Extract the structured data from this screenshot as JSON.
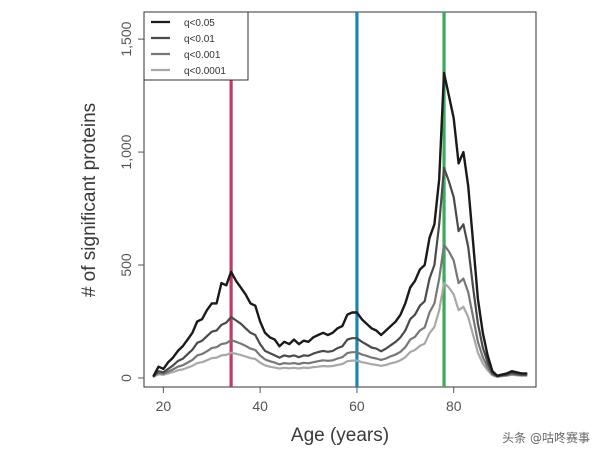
{
  "chart_data": {
    "type": "line",
    "title": "",
    "xlabel": "Age (years)",
    "ylabel": "# of significant proteins",
    "xlim": [
      16,
      97
    ],
    "ylim": [
      -40,
      1620
    ],
    "xticks": [
      20,
      40,
      60,
      80
    ],
    "yticks": [
      0,
      500,
      1000,
      1500
    ],
    "yticklabels": [
      "0",
      "500",
      "1,000",
      "1,500"
    ],
    "grid": false,
    "legend_position": "top-left",
    "x": [
      18,
      19,
      20,
      21,
      22,
      23,
      24,
      25,
      26,
      27,
      28,
      29,
      30,
      31,
      32,
      33,
      34,
      35,
      36,
      37,
      38,
      39,
      40,
      41,
      42,
      43,
      44,
      45,
      46,
      47,
      48,
      49,
      50,
      51,
      52,
      53,
      54,
      55,
      56,
      57,
      58,
      59,
      60,
      61,
      62,
      63,
      64,
      65,
      66,
      67,
      68,
      69,
      70,
      71,
      72,
      73,
      74,
      75,
      76,
      77,
      78,
      79,
      80,
      81,
      82,
      83,
      84,
      85,
      86,
      87,
      88,
      89,
      90,
      91,
      92,
      93,
      94,
      95
    ],
    "series": [
      {
        "name": "q<0.05",
        "color": "#1a1a1a",
        "width": 2.4,
        "values": [
          10,
          50,
          40,
          70,
          90,
          120,
          140,
          170,
          200,
          250,
          260,
          300,
          330,
          330,
          420,
          410,
          470,
          430,
          400,
          370,
          330,
          320,
          250,
          200,
          180,
          170,
          140,
          160,
          150,
          170,
          150,
          165,
          160,
          180,
          190,
          200,
          190,
          200,
          220,
          230,
          280,
          290,
          290,
          260,
          240,
          220,
          210,
          190,
          210,
          230,
          250,
          280,
          330,
          400,
          430,
          480,
          500,
          620,
          680,
          880,
          1350,
          1250,
          1150,
          950,
          1000,
          850,
          600,
          350,
          200,
          100,
          30,
          10,
          15,
          20,
          30,
          25,
          20,
          20
        ]
      },
      {
        "name": "q<0.01",
        "color": "#4a4a4a",
        "width": 2.2,
        "values": [
          10,
          30,
          25,
          40,
          55,
          75,
          85,
          105,
          125,
          155,
          165,
          185,
          205,
          210,
          235,
          245,
          270,
          255,
          240,
          220,
          200,
          190,
          150,
          120,
          110,
          100,
          90,
          100,
          95,
          100,
          92,
          100,
          98,
          108,
          115,
          120,
          116,
          120,
          132,
          140,
          170,
          176,
          176,
          160,
          148,
          135,
          130,
          118,
          130,
          145,
          160,
          180,
          210,
          260,
          280,
          320,
          340,
          440,
          500,
          680,
          930,
          870,
          800,
          650,
          680,
          580,
          400,
          240,
          135,
          70,
          20,
          8,
          12,
          15,
          22,
          18,
          15,
          15
        ]
      },
      {
        "name": "q<0.001",
        "color": "#777777",
        "width": 2.2,
        "values": [
          8,
          22,
          18,
          28,
          38,
          50,
          56,
          68,
          80,
          100,
          106,
          118,
          132,
          136,
          150,
          154,
          168,
          160,
          152,
          142,
          130,
          124,
          100,
          82,
          74,
          68,
          60,
          66,
          63,
          66,
          62,
          67,
          65,
          70,
          74,
          78,
          76,
          78,
          86,
          92,
          110,
          114,
          114,
          104,
          98,
          90,
          86,
          80,
          86,
          96,
          104,
          116,
          136,
          170,
          182,
          210,
          224,
          290,
          330,
          440,
          590,
          560,
          520,
          420,
          440,
          380,
          270,
          160,
          92,
          48,
          16,
          6,
          10,
          12,
          18,
          15,
          12,
          12
        ]
      },
      {
        "name": "q<0.0001",
        "color": "#a8a8a8",
        "width": 2.2,
        "values": [
          6,
          16,
          14,
          20,
          26,
          34,
          38,
          46,
          54,
          66,
          70,
          78,
          88,
          90,
          100,
          102,
          112,
          107,
          102,
          95,
          88,
          84,
          68,
          56,
          50,
          46,
          42,
          45,
          43,
          45,
          42,
          46,
          44,
          48,
          50,
          53,
          51,
          53,
          58,
          62,
          74,
          77,
          77,
          70,
          66,
          61,
          58,
          54,
          58,
          65,
          70,
          78,
          92,
          115,
          124,
          142,
          152,
          198,
          226,
          300,
          420,
          400,
          370,
          300,
          315,
          270,
          190,
          112,
          64,
          34,
          12,
          5,
          8,
          10,
          14,
          12,
          10,
          10
        ]
      }
    ],
    "vertical_lines": [
      {
        "x": 34,
        "color": "#c0396b"
      },
      {
        "x": 60,
        "color": "#1a86b8"
      },
      {
        "x": 78,
        "color": "#3bab5a"
      }
    ]
  },
  "watermark": "头条 @咕咚赛事"
}
